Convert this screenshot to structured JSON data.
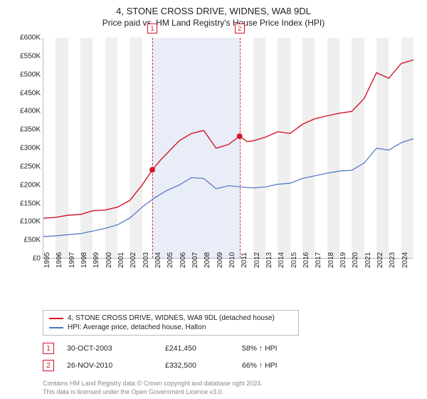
{
  "title": "4, STONE CROSS DRIVE, WIDNES, WA8 9DL",
  "subtitle": "Price paid vs. HM Land Registry's House Price Index (HPI)",
  "chart": {
    "type": "line",
    "xlim": [
      1995,
      2025
    ],
    "ylim": [
      0,
      600000
    ],
    "ytick_step": 50000,
    "ytick_labels": [
      "£0",
      "£50K",
      "£100K",
      "£150K",
      "£200K",
      "£250K",
      "£300K",
      "£350K",
      "£400K",
      "£450K",
      "£500K",
      "£550K",
      "£600K"
    ],
    "xticks": [
      1995,
      1996,
      1997,
      1998,
      1999,
      2000,
      2001,
      2002,
      2003,
      2004,
      2005,
      2006,
      2007,
      2008,
      2009,
      2010,
      2011,
      2012,
      2013,
      2014,
      2015,
      2016,
      2017,
      2018,
      2019,
      2020,
      2021,
      2022,
      2023,
      2024
    ],
    "grid_minor_color": "#efefef",
    "grid_band_color": "#e9edf7",
    "axis_color": "#bbbbbb",
    "background_color": "#ffffff",
    "band_start": 2003.83,
    "band_end": 2010.9,
    "vline_color": "#e03030",
    "series": [
      {
        "name": "price",
        "color": "#d4152a",
        "width": 1.4,
        "x": [
          1995,
          1996,
          1997,
          1998,
          1999,
          2000,
          2001,
          2002,
          2003,
          2003.83,
          2004.5,
          2005,
          2006,
          2007,
          2008,
          2009,
          2010,
          2010.9,
          2011.5,
          2012,
          2013,
          2014,
          2015,
          2016,
          2017,
          2018,
          2019,
          2020,
          2021,
          2022,
          2023,
          2024,
          2025
        ],
        "y": [
          110000,
          112000,
          118000,
          120000,
          130000,
          132000,
          140000,
          158000,
          200000,
          241450,
          268000,
          285000,
          320000,
          340000,
          348000,
          300000,
          310000,
          332500,
          318000,
          320000,
          330000,
          345000,
          340000,
          365000,
          380000,
          388000,
          395000,
          400000,
          435000,
          505000,
          490000,
          530000,
          540000
        ]
      },
      {
        "name": "hpi",
        "color": "#4a72c6",
        "width": 1.2,
        "x": [
          1995,
          1996,
          1997,
          1998,
          1999,
          2000,
          2001,
          2002,
          2003,
          2004,
          2005,
          2006,
          2007,
          2008,
          2009,
          2010,
          2011,
          2012,
          2013,
          2014,
          2015,
          2016,
          2017,
          2018,
          2019,
          2020,
          2021,
          2022,
          2023,
          2024,
          2025
        ],
        "y": [
          60000,
          62000,
          65000,
          68000,
          75000,
          82000,
          92000,
          110000,
          140000,
          165000,
          185000,
          200000,
          220000,
          218000,
          190000,
          198000,
          195000,
          192000,
          195000,
          202000,
          205000,
          218000,
          225000,
          232000,
          238000,
          240000,
          260000,
          300000,
          295000,
          315000,
          326000
        ]
      }
    ],
    "markers": [
      {
        "id": "1",
        "x": 2003.83,
        "y": 241450,
        "color": "#d4152a"
      },
      {
        "id": "2",
        "x": 2010.9,
        "y": 332500,
        "color": "#d4152a"
      }
    ]
  },
  "legend": {
    "items": [
      {
        "color": "#d4152a",
        "label": "4, STONE CROSS DRIVE, WIDNES, WA8 9DL (detached house)"
      },
      {
        "color": "#4a72c6",
        "label": "HPI: Average price, detached house, Halton"
      }
    ]
  },
  "sales": [
    {
      "id": "1",
      "badge_color": "#d4152a",
      "date": "30-OCT-2003",
      "price": "£241,450",
      "note": "58% ↑ HPI"
    },
    {
      "id": "2",
      "badge_color": "#d4152a",
      "date": "26-NOV-2010",
      "price": "£332,500",
      "note": "66% ↑ HPI"
    }
  ],
  "footer": {
    "line1": "Contains HM Land Registry data © Crown copyright and database right 2024.",
    "line2": "This data is licensed under the Open Government Licence v3.0."
  }
}
